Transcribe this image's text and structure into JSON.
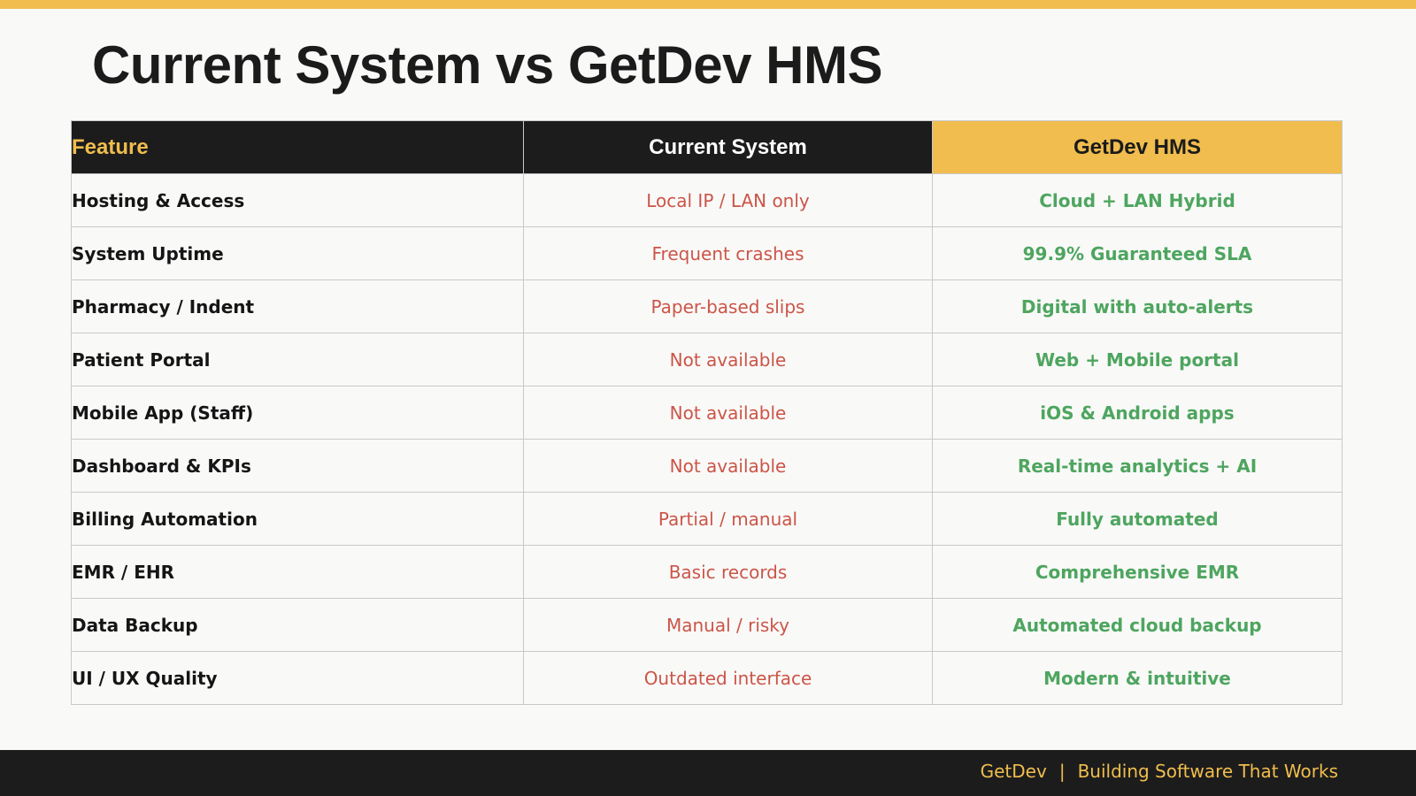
{
  "slide": {
    "title": "Current System vs GetDev HMS"
  },
  "colors": {
    "accent": "#f0bd4e",
    "dark": "#1c1c1c",
    "negative": "#cb5547",
    "positive": "#4ea55f"
  },
  "table": {
    "headers": [
      "Feature",
      "Current System",
      "GetDev HMS"
    ],
    "rows": [
      [
        "Hosting & Access",
        "Local IP / LAN only",
        "Cloud + LAN Hybrid"
      ],
      [
        "System Uptime",
        "Frequent crashes",
        "99.9% Guaranteed SLA"
      ],
      [
        "Pharmacy / Indent",
        "Paper-based slips",
        "Digital with auto-alerts"
      ],
      [
        "Patient Portal",
        "Not available",
        "Web + Mobile portal"
      ],
      [
        "Mobile App (Staff)",
        "Not available",
        "iOS & Android apps"
      ],
      [
        "Dashboard & KPIs",
        "Not available",
        "Real-time analytics + AI"
      ],
      [
        "Billing Automation",
        "Partial / manual",
        "Fully automated"
      ],
      [
        "EMR / EHR",
        "Basic records",
        "Comprehensive EMR"
      ],
      [
        "Data Backup",
        "Manual / risky",
        "Automated cloud backup"
      ],
      [
        "UI / UX Quality",
        "Outdated interface",
        "Modern & intuitive"
      ]
    ]
  },
  "footer": {
    "brand": "GetDev",
    "separator": "|",
    "tagline": "Building Software That Works"
  }
}
